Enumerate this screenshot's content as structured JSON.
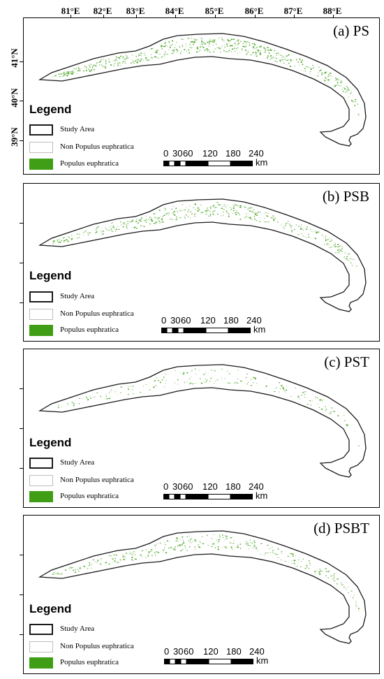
{
  "longitude_labels": [
    "81°E",
    "82°E",
    "83°E",
    "84°E",
    "85°E",
    "86°E",
    "87°E",
    "88°E"
  ],
  "latitude_labels": [
    "41°N",
    "40°N",
    "39°N"
  ],
  "legend": {
    "title": "Legend",
    "items": [
      {
        "label": "Study Area"
      },
      {
        "label": "Non Populus euphratica"
      },
      {
        "label": "Populus euphratica"
      }
    ]
  },
  "scale_bar": {
    "labels": [
      "0",
      "30",
      "60",
      "120",
      "180",
      "240"
    ],
    "unit": "km"
  },
  "panels": [
    {
      "title": "(a) PS",
      "density": 1.0
    },
    {
      "title": "(b) PSB",
      "density": 0.75
    },
    {
      "title": "(c) PST",
      "density": 0.35
    },
    {
      "title": "(d) PSBT",
      "density": 0.6
    }
  ],
  "colors": {
    "populus": "#3f9e15",
    "study_area_outline": "#1a1a1a",
    "non_populus": "#ffffff"
  }
}
